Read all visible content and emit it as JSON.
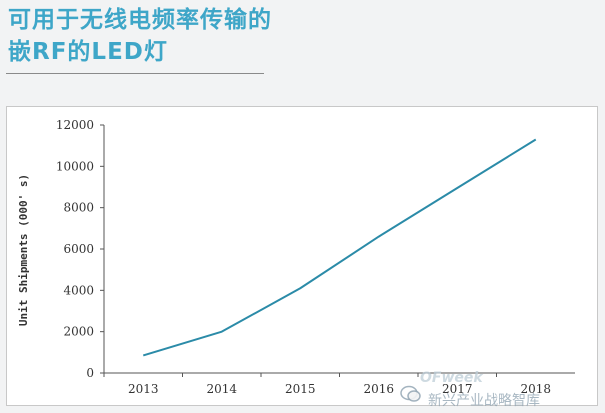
{
  "page": {
    "title_line1": "可用于无线电频率传输的",
    "title_line2": "嵌RF的LED灯",
    "accent_color": "#3ea6c8"
  },
  "chart_data": {
    "type": "line",
    "title": "",
    "xlabel": "",
    "ylabel": "Unit Shipments (000' s)",
    "categories": [
      "2013",
      "2014",
      "2015",
      "2016",
      "2017",
      "2018"
    ],
    "series": [
      {
        "values": [
          850,
          2000,
          4100,
          6600,
          8950,
          11300
        ],
        "color": "#2b8ba8"
      }
    ],
    "ylim": [
      0,
      12000
    ],
    "yticks": [
      "0",
      "2000",
      "4000",
      "6000",
      "8000",
      "10000",
      "12000"
    ],
    "grid": false,
    "legend": "none"
  },
  "watermark": {
    "brand": "OFweek",
    "name": "新兴产业战略智库",
    "icon": "wechat-icon"
  }
}
